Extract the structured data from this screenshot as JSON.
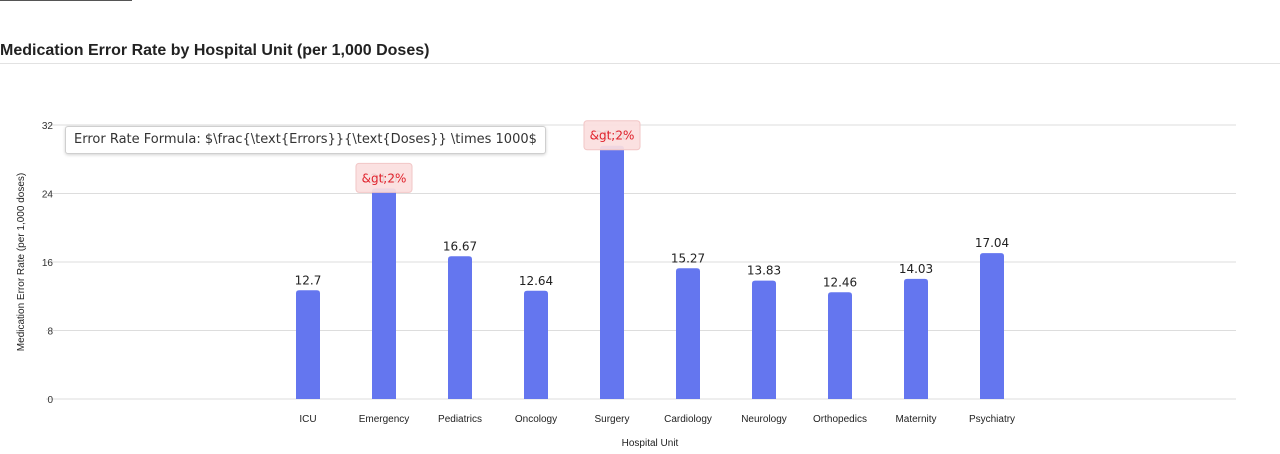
{
  "title": "Medication Error Rate by Hospital Unit (per 1,000 Doses)",
  "formula_note": "Error Rate Formula: $\\frac{\\text{Errors}}{\\text{Doses}} \\times 1000$",
  "colors": {
    "bar": "#6476ef",
    "grid": "#dddddd",
    "badge_bg": "#fbdede",
    "badge_text": "#e0212b"
  },
  "chart_data": {
    "type": "bar",
    "title": "Medication Error Rate by Hospital Unit (per 1,000 Doses)",
    "xlabel": "Hospital Unit",
    "ylabel": "Medication Error Rate (per 1,000 doses)",
    "ylim": [
      0,
      32
    ],
    "yticks": [
      0,
      8,
      16,
      24,
      32
    ],
    "grid": true,
    "categories": [
      "ICU",
      "Emergency",
      "Pediatrics",
      "Oncology",
      "Surgery",
      "Cardiology",
      "Neurology",
      "Orthopedics",
      "Maternity",
      "Psychiatry"
    ],
    "values": [
      12.7,
      24.6,
      16.67,
      12.64,
      29.58,
      15.27,
      13.83,
      12.46,
      14.03,
      17.04
    ],
    "value_labels": [
      "12.7",
      "24.6",
      "16.67",
      "12.64",
      "29.58",
      "15.27",
      "13.83",
      "12.46",
      "14.03",
      "17.04"
    ],
    "flag_text": "&gt;2%",
    "flagged": [
      "Emergency",
      "Surgery"
    ]
  }
}
